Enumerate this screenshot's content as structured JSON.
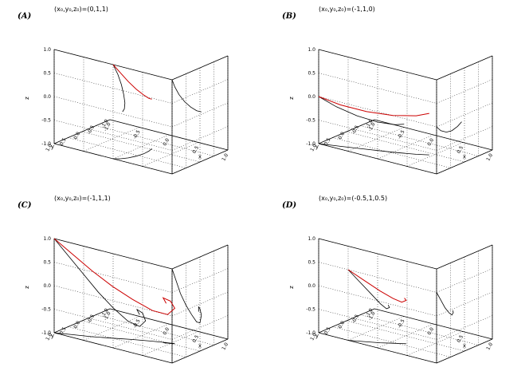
{
  "chart_data": [
    {
      "type": "line",
      "panel_label": "(A)",
      "title": "(x₀,y₀,z₀)=(0,1,1)",
      "xlabel": "x",
      "ylabel": "y",
      "zlabel": "z",
      "xlim": [
        -1.0,
        1.0
      ],
      "ylim": [
        -1.0,
        1.0
      ],
      "zlim": [
        -1.0,
        1.0
      ],
      "z_ticks": [
        "-1.0",
        "-0.5",
        "0.0",
        "0.5",
        "1.0"
      ],
      "x_ticks": [
        "-1.0",
        "-0.5",
        "0.0",
        "0.5",
        "1.0"
      ],
      "y_ticks": [
        "-1.0",
        "-0.5",
        "0.0",
        "0.5",
        "1.0"
      ],
      "grid": true,
      "series": [
        {
          "color": "#cc0000",
          "points": [
            [
              0,
              1,
              1
            ],
            [
              0.08,
              0.9,
              0.82
            ],
            [
              0.14,
              0.75,
              0.62
            ],
            [
              0.18,
              0.55,
              0.42
            ],
            [
              0.2,
              0.33,
              0.25
            ],
            [
              0.19,
              0.12,
              0.12
            ],
            [
              0.16,
              -0.05,
              0.05
            ]
          ]
        }
      ]
    },
    {
      "type": "line",
      "panel_label": "(B)",
      "title": "(x₀,y₀,z₀)=(-1,1,0)",
      "xlabel": "x",
      "ylabel": "y",
      "zlabel": "z",
      "xlim": [
        -1.0,
        1.0
      ],
      "ylim": [
        -1.0,
        1.0
      ],
      "zlim": [
        -1.0,
        1.0
      ],
      "z_ticks": [
        "-1.0",
        "-0.5",
        "0.0",
        "0.5",
        "1.0"
      ],
      "x_ticks": [
        "-1.0",
        "-0.5",
        "0.0",
        "0.5",
        "1.0"
      ],
      "y_ticks": [
        "-1.0",
        "-0.5",
        "0.0",
        "0.5",
        "1.0"
      ],
      "grid": true,
      "series": [
        {
          "color": "#cc0000",
          "points": [
            [
              -1,
              1,
              0
            ],
            [
              -0.7,
              0.85,
              -0.12
            ],
            [
              -0.35,
              0.65,
              -0.2
            ],
            [
              0.0,
              0.45,
              -0.22
            ],
            [
              0.3,
              0.25,
              -0.18
            ],
            [
              0.45,
              0.1,
              -0.12
            ]
          ]
        }
      ]
    },
    {
      "type": "line",
      "panel_label": "(C)",
      "title": "(x₀,y₀,z₀)=(-1,1,1)",
      "xlabel": "x",
      "ylabel": "y",
      "zlabel": "z",
      "xlim": [
        -1.0,
        1.0
      ],
      "ylim": [
        -1.0,
        1.0
      ],
      "zlim": [
        -1.0,
        1.0
      ],
      "z_ticks": [
        "-1.0",
        "-0.5",
        "0.0",
        "0.5",
        "1.0"
      ],
      "x_ticks": [
        "-1.0",
        "-0.5",
        "0.0",
        "0.5",
        "1.0"
      ],
      "y_ticks": [
        "-1.0",
        "-0.5",
        "0.0",
        "0.5",
        "1.0"
      ],
      "grid": true,
      "series": [
        {
          "color": "#cc0000",
          "points": [
            [
              -1,
              1,
              1
            ],
            [
              -0.75,
              0.85,
              0.7
            ],
            [
              -0.5,
              0.7,
              0.4
            ],
            [
              -0.25,
              0.5,
              0.1
            ],
            [
              0.0,
              0.3,
              -0.15
            ],
            [
              0.25,
              0.12,
              -0.35
            ],
            [
              0.45,
              0.0,
              -0.4
            ],
            [
              0.55,
              -0.05,
              -0.25
            ],
            [
              0.5,
              0.0,
              -0.1
            ],
            [
              0.4,
              0.05,
              -0.05
            ],
            [
              0.45,
              0.05,
              -0.15
            ]
          ]
        }
      ]
    },
    {
      "type": "line",
      "panel_label": "(D)",
      "title": "(x₀,y₀,z₀)=(-0.5,1,0.5)",
      "xlabel": "x",
      "ylabel": "y",
      "zlabel": "z",
      "xlim": [
        -1.0,
        1.0
      ],
      "ylim": [
        -1.0,
        1.0
      ],
      "zlim": [
        -1.0,
        1.0
      ],
      "z_ticks": [
        "-1.0",
        "-0.5",
        "0.0",
        "0.5",
        "1.0"
      ],
      "x_ticks": [
        "-1.0",
        "-0.5",
        "0.0",
        "0.5",
        "1.0"
      ],
      "y_ticks": [
        "-1.0",
        "-0.5",
        "0.0",
        "0.5",
        "1.0"
      ],
      "grid": true,
      "series": [
        {
          "color": "#cc0000",
          "points": [
            [
              -0.5,
              1,
              0.5
            ],
            [
              -0.3,
              0.85,
              0.3
            ],
            [
              -0.1,
              0.7,
              0.1
            ],
            [
              0.05,
              0.55,
              -0.05
            ],
            [
              0.15,
              0.45,
              -0.12
            ],
            [
              0.2,
              0.4,
              -0.08
            ],
            [
              0.18,
              0.42,
              -0.03
            ]
          ]
        }
      ]
    }
  ]
}
